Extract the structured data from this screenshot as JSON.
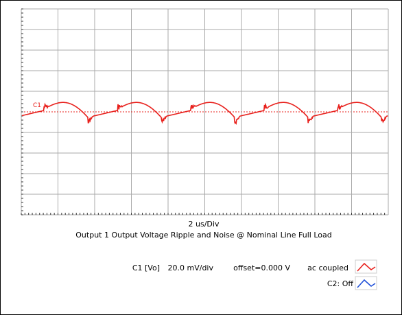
{
  "scope": {
    "channel_marker": "C1",
    "timebase": "2 us/Div",
    "caption": "Output 1 Output Voltage Ripple and Noise @ Nominal Line Full Load",
    "c1": {
      "name": "C1 [Vo]",
      "scale": "20.0 mV/div",
      "offset": "offset=0.000 V",
      "coupling": "ac coupled"
    },
    "c2": {
      "status": "C2: Off"
    }
  }
}
